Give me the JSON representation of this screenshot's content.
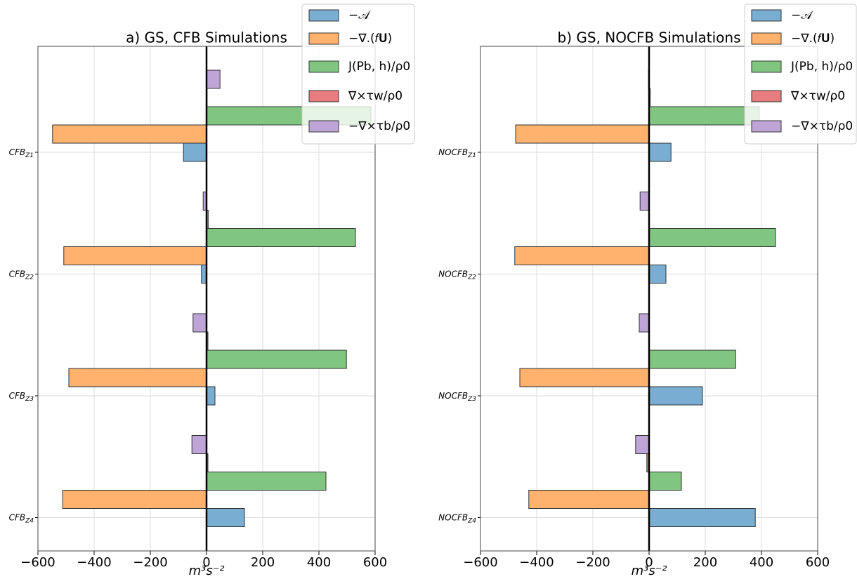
{
  "chart_data": [
    {
      "type": "barh",
      "title": "a) GS, CFB Simulations",
      "xlabel": "m³s⁻²",
      "categories": [
        "CFBZ1",
        "CFBZ2",
        "CFBZ3",
        "CFBZ4"
      ],
      "series": [
        {
          "name": "−𝒜",
          "color": "#79add2",
          "values": [
            -82,
            -18,
            30,
            135
          ]
        },
        {
          "name": "−∇.(𝑓𝐔)",
          "color": "#ffb26e",
          "values": [
            -548,
            -508,
            -490,
            -512
          ]
        },
        {
          "name": "J(Pb, h)/ρ0",
          "color": "#80c680",
          "values": [
            585,
            530,
            498,
            425
          ]
        },
        {
          "name": "∇×τw/ρ0",
          "color": "#e67d7e",
          "values": [
            2,
            6,
            5,
            5
          ]
        },
        {
          "name": "−∇×τb/ρ0",
          "color": "#bfa4d7",
          "values": [
            48,
            -12,
            -48,
            -52
          ]
        }
      ],
      "xlim": [
        -600,
        600
      ],
      "xticks": [
        {
          "value": -600,
          "label": "−600"
        },
        {
          "value": -400,
          "label": "−400"
        },
        {
          "value": -200,
          "label": "−200"
        },
        0,
        200,
        400,
        600
      ],
      "grid": true,
      "legend": "upper right"
    },
    {
      "type": "barh",
      "title": "b) GS, NOCFB Simulations",
      "xlabel": "m³s⁻²",
      "categories": [
        "NOCFBZ1",
        "NOCFBZ2",
        "NOCFBZ3",
        "NOCFBZ4"
      ],
      "series": [
        {
          "name": "−𝒜",
          "color": "#79add2",
          "values": [
            78,
            60,
            190,
            378
          ]
        },
        {
          "name": "−∇.(𝑓𝐔)",
          "color": "#ffb26e",
          "values": [
            -475,
            -478,
            -460,
            -428
          ]
        },
        {
          "name": "J(Pb, h)/ρ0",
          "color": "#80c680",
          "values": [
            392,
            450,
            308,
            115
          ]
        },
        {
          "name": "∇×τw/ρ0",
          "color": "#e67d7e",
          "values": [
            4,
            1,
            1,
            -8
          ]
        },
        {
          "name": "−∇×τb/ρ0",
          "color": "#bfa4d7",
          "values": [
            -2,
            -32,
            -35,
            -48
          ]
        }
      ],
      "xlim": [
        -600,
        600
      ],
      "xticks": [
        {
          "value": -600,
          "label": "−600"
        },
        {
          "value": -400,
          "label": "−400"
        },
        {
          "value": -200,
          "label": "−200"
        },
        0,
        200,
        400,
        600
      ],
      "grid": true,
      "legend": "upper right"
    }
  ]
}
